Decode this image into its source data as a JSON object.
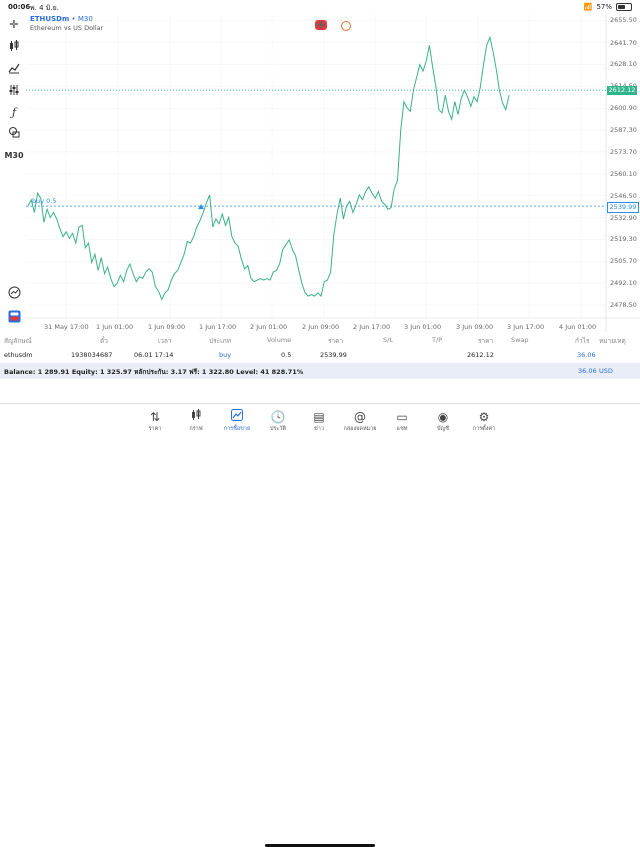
{
  "status_bar": {
    "time": "00:06",
    "date": "พ. 4 มิ.ย.",
    "battery": "57%",
    "battery_level": 0.57
  },
  "toolbar": {
    "timeframe": "M30"
  },
  "symbol": {
    "name": "ETHUSDm",
    "sep": "•",
    "timeframe": "M30",
    "description": "Ethereum vs US Dollar"
  },
  "chart": {
    "y_ticks": [
      "2655.50",
      "2641.70",
      "2628.10",
      "2614.50",
      "2600.90",
      "2587.30",
      "2573.70",
      "2560.10",
      "2546.50",
      "2532.90",
      "2519.30",
      "2505.70",
      "2492.10",
      "2478.50"
    ],
    "bid_price": "2612.12",
    "order_price": "2539.99",
    "order_label": "buy 0.5",
    "x_ticks": [
      "31 May 17:00",
      "1 Jun 01:00",
      "1 Jun 09:00",
      "1 Jun 17:00",
      "2 Jun 01:00",
      "2 Jun 09:00",
      "2 Jun 17:00",
      "3 Jun 01:00",
      "3 Jun 09:00",
      "3 Jun 17:00",
      "4 Jun 01:00"
    ],
    "colors": {
      "line": "#3cb08a",
      "order": "#2a8ee8",
      "bid": "#2fb58c",
      "grid": "#f0f0f0"
    },
    "order_marker_icon": "triangle-up-icon"
  },
  "chart_data": {
    "type": "line",
    "title": "ETHUSDm • M30",
    "subtitle": "Ethereum vs US Dollar",
    "xlabel": "",
    "ylabel": "",
    "ylim": [
      2470,
      2662
    ],
    "series": [
      {
        "name": "",
        "y": [
          2540,
          2544,
          2536,
          2548,
          2545,
          2530,
          2538,
          2533,
          2536,
          2532,
          2526,
          2521,
          2524,
          2520,
          2523,
          2517,
          2527,
          2528,
          2514,
          2517,
          2505,
          2510,
          2500,
          2508,
          2498,
          2502,
          2495,
          2490,
          2492,
          2497,
          2493,
          2500,
          2504,
          2498,
          2493,
          2496,
          2495,
          2499,
          2501,
          2499,
          2490,
          2487,
          2482,
          2486,
          2488,
          2494,
          2498,
          2500,
          2505,
          2510,
          2518,
          2517,
          2521,
          2527,
          2531,
          2536,
          2542,
          2547,
          2527,
          2532,
          2529,
          2535,
          2528,
          2533,
          2521,
          2517,
          2515,
          2507,
          2501,
          2503,
          2495,
          2493,
          2494,
          2495,
          2494,
          2495,
          2494,
          2499,
          2500,
          2504,
          2513,
          2516,
          2519,
          2513,
          2509,
          2500,
          2492,
          2486,
          2484,
          2485,
          2484,
          2486,
          2484,
          2493,
          2494,
          2499,
          2522,
          2535,
          2545,
          2532,
          2540,
          2543,
          2536,
          2541,
          2547,
          2544,
          2549,
          2552,
          2548,
          2545,
          2549,
          2543,
          2541,
          2538,
          2539,
          2551,
          2556,
          2587,
          2605,
          2601,
          2599,
          2612,
          2620,
          2628,
          2624,
          2630,
          2640,
          2627,
          2615,
          2600,
          2598,
          2609,
          2599,
          2594,
          2605,
          2597,
          2607,
          2612,
          2608,
          2602,
          2608,
          2605,
          2614,
          2628,
          2640,
          2645,
          2636,
          2625,
          2612,
          2604,
          2600,
          2609
        ]
      }
    ],
    "x_ticks": [
      "31 May 17:00",
      "1 Jun 01:00",
      "1 Jun 09:00",
      "1 Jun 17:00",
      "2 Jun 01:00",
      "2 Jun 09:00",
      "2 Jun 17:00",
      "3 Jun 01:00",
      "3 Jun 09:00",
      "3 Jun 17:00",
      "4 Jun 01:00"
    ],
    "y_ticks": [
      2655.5,
      2641.7,
      2628.1,
      2614.5,
      2600.9,
      2587.3,
      2573.7,
      2560.1,
      2546.5,
      2532.9,
      2519.3,
      2505.7,
      2492.1,
      2478.5
    ],
    "horizontal_lines": [
      {
        "label": "buy 0.5",
        "value": 2539.99
      },
      {
        "label": "bid",
        "value": 2612.12
      }
    ],
    "grid": true
  },
  "trade_table": {
    "headers": [
      "สัญลักษณ์",
      "ตั๋ว",
      "เวลา",
      "ประเภท",
      "Volume",
      "ราคา",
      "S/L",
      "T/P",
      "ราคา",
      "Swap",
      "กำไร",
      "หมายเหตุ"
    ],
    "row": {
      "symbol": "ethusdm",
      "ticket": "1938034687",
      "time": "06.01 17:14",
      "type": "buy",
      "volume": "0.5",
      "open_price": "2539.99",
      "sl": "",
      "tp": "",
      "current_price": "2612.12",
      "swap": "",
      "profit": "36.06",
      "comment": ""
    }
  },
  "balance_bar": {
    "text": "Balance: 1 289.91 Equity: 1 325.97 หลักประกัน: 3.17 ฟรี: 1 322.80 Level: 41 828.71%",
    "profit": "36.06",
    "currency": "USD"
  },
  "tabs": [
    {
      "label": "ราคา",
      "icon": "quotes-arrows-icon"
    },
    {
      "label": "กราฟ",
      "icon": "chart-candles-icon"
    },
    {
      "label": "การซื้อขาย",
      "icon": "trade-chart-icon",
      "active": true
    },
    {
      "label": "ประวัติ",
      "icon": "history-clock-icon"
    },
    {
      "label": "ข่าว",
      "icon": "news-icon"
    },
    {
      "label": "กล่องจดหมาย",
      "icon": "mailbox-at-icon"
    },
    {
      "label": "แชท",
      "icon": "chat-icon"
    },
    {
      "label": "บัญชี",
      "icon": "account-icon"
    },
    {
      "label": "การตั้งค่า",
      "icon": "settings-gear-icon"
    }
  ]
}
